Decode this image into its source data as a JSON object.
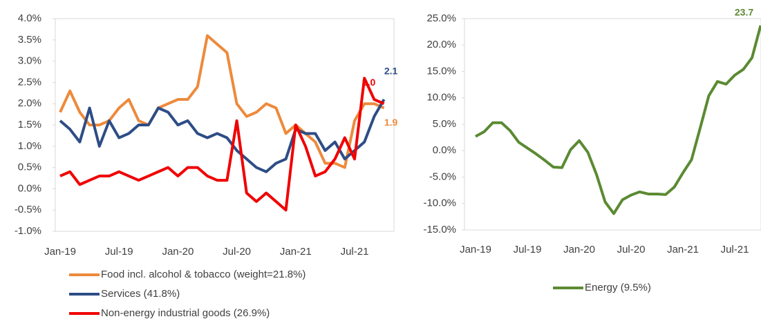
{
  "chart_data": [
    {
      "type": "line",
      "categories": [
        "Jan-19",
        null,
        null,
        null,
        null,
        null,
        "Jul-19",
        null,
        null,
        null,
        null,
        null,
        "Jan-20",
        null,
        null,
        null,
        null,
        null,
        "Jul-20",
        null,
        null,
        null,
        null,
        null,
        "Jan-21",
        null,
        null,
        null,
        null,
        null,
        "Jul-21",
        null,
        null,
        null
      ],
      "series": [
        {
          "name": "Food incl. alcohol & tobacco (weight=21.8%)",
          "color": "#ed8a3c",
          "values": [
            1.8,
            2.3,
            1.8,
            1.5,
            1.5,
            1.6,
            1.9,
            2.1,
            1.6,
            1.5,
            1.9,
            2.0,
            2.1,
            2.1,
            2.4,
            3.6,
            3.4,
            3.2,
            2.0,
            1.7,
            1.8,
            2.0,
            1.9,
            1.3,
            1.5,
            1.3,
            1.1,
            0.6,
            0.6,
            0.5,
            1.6,
            2.0,
            2.0,
            1.9
          ],
          "value_labels": [
            null,
            null,
            null,
            null,
            null,
            null,
            null,
            null,
            null,
            null,
            null,
            null,
            null,
            null,
            null,
            null,
            null,
            null,
            null,
            null,
            null,
            null,
            null,
            null,
            null,
            null,
            null,
            null,
            null,
            null,
            null,
            null,
            null,
            "1.9"
          ]
        },
        {
          "name": "Services (41.8%)",
          "color": "#2e4d86",
          "values": [
            1.6,
            1.4,
            1.1,
            1.9,
            1.0,
            1.6,
            1.2,
            1.3,
            1.5,
            1.5,
            1.9,
            1.8,
            1.5,
            1.6,
            1.3,
            1.2,
            1.3,
            1.2,
            0.9,
            0.7,
            0.5,
            0.4,
            0.6,
            0.7,
            1.4,
            1.3,
            1.3,
            0.9,
            1.1,
            0.7,
            0.9,
            1.1,
            1.7,
            2.1
          ],
          "value_labels": [
            null,
            null,
            null,
            null,
            null,
            null,
            null,
            null,
            null,
            null,
            null,
            null,
            null,
            null,
            null,
            null,
            null,
            null,
            null,
            null,
            null,
            null,
            null,
            null,
            null,
            null,
            null,
            null,
            null,
            null,
            null,
            null,
            null,
            "2.1"
          ]
        },
        {
          "name": "Non-energy industrial goods (26.9%)",
          "color": "#f00000",
          "values": [
            0.3,
            0.4,
            0.1,
            0.2,
            0.3,
            0.3,
            0.4,
            0.3,
            0.2,
            0.3,
            0.4,
            0.5,
            0.3,
            0.5,
            0.5,
            0.3,
            0.2,
            0.2,
            1.6,
            -0.1,
            -0.3,
            -0.1,
            -0.3,
            -0.5,
            1.5,
            1.0,
            0.3,
            0.4,
            0.7,
            1.2,
            0.7,
            2.6,
            2.1,
            2.0
          ],
          "value_labels": [
            null,
            null,
            null,
            null,
            null,
            null,
            null,
            null,
            null,
            null,
            null,
            null,
            null,
            null,
            null,
            null,
            null,
            null,
            null,
            null,
            null,
            null,
            null,
            null,
            null,
            null,
            null,
            null,
            null,
            null,
            null,
            null,
            null,
            "2.0"
          ]
        }
      ],
      "ylim": [
        -1,
        4
      ],
      "yticks": [
        {
          "value": -1,
          "label": "-1.0%"
        },
        {
          "value": -0.5,
          "label": "-0.5%"
        },
        {
          "value": 0,
          "label": "0.0%"
        },
        {
          "value": 0.5,
          "label": "0.5%"
        },
        {
          "value": 1,
          "label": "1.0%"
        },
        {
          "value": 1.5,
          "label": "1.5%"
        },
        {
          "value": 2,
          "label": "2.0%"
        },
        {
          "value": 2.5,
          "label": "2.5%"
        },
        {
          "value": 3,
          "label": "3.0%"
        },
        {
          "value": 3.5,
          "label": "3.5%"
        },
        {
          "value": 4,
          "label": "4.0%"
        }
      ]
    },
    {
      "type": "line",
      "categories": [
        "Jan-19",
        null,
        null,
        null,
        null,
        null,
        "Jul-19",
        null,
        null,
        null,
        null,
        null,
        "Jan-20",
        null,
        null,
        null,
        null,
        null,
        "Jul-20",
        null,
        null,
        null,
        null,
        null,
        "Jan-21",
        null,
        null,
        null,
        null,
        null,
        "Jul-21",
        null,
        null,
        null
      ],
      "series": [
        {
          "name": "Energy (9.5%)",
          "color": "#5b8a32",
          "values": [
            2.7,
            3.6,
            5.3,
            5.3,
            3.8,
            1.6,
            0.5,
            -0.6,
            -1.8,
            -3.1,
            -3.2,
            0.2,
            1.9,
            -0.3,
            -4.5,
            -9.7,
            -11.9,
            -9.3,
            -8.4,
            -7.8,
            -8.2,
            -8.2,
            -8.3,
            -6.9,
            -4.2,
            -1.7,
            4.3,
            10.4,
            13.1,
            12.6,
            14.3,
            15.4,
            17.6,
            23.7
          ],
          "value_labels": [
            null,
            null,
            null,
            null,
            null,
            null,
            null,
            null,
            null,
            null,
            null,
            null,
            null,
            null,
            null,
            null,
            null,
            null,
            null,
            null,
            null,
            null,
            null,
            null,
            null,
            null,
            null,
            null,
            null,
            null,
            null,
            null,
            null,
            "23.7"
          ]
        }
      ],
      "ylim": [
        -15,
        25
      ],
      "yticks": [
        {
          "value": -15,
          "label": "-15.0%"
        },
        {
          "value": -10,
          "label": "-10.0%"
        },
        {
          "value": -5,
          "label": "-5.0%"
        },
        {
          "value": 0,
          "label": "0.0%"
        },
        {
          "value": 5,
          "label": "5.0%"
        },
        {
          "value": 10,
          "label": "10.0%"
        },
        {
          "value": 15,
          "label": "15.0%"
        },
        {
          "value": 20,
          "label": "20.0%"
        },
        {
          "value": 25,
          "label": "25.0%"
        }
      ]
    }
  ]
}
